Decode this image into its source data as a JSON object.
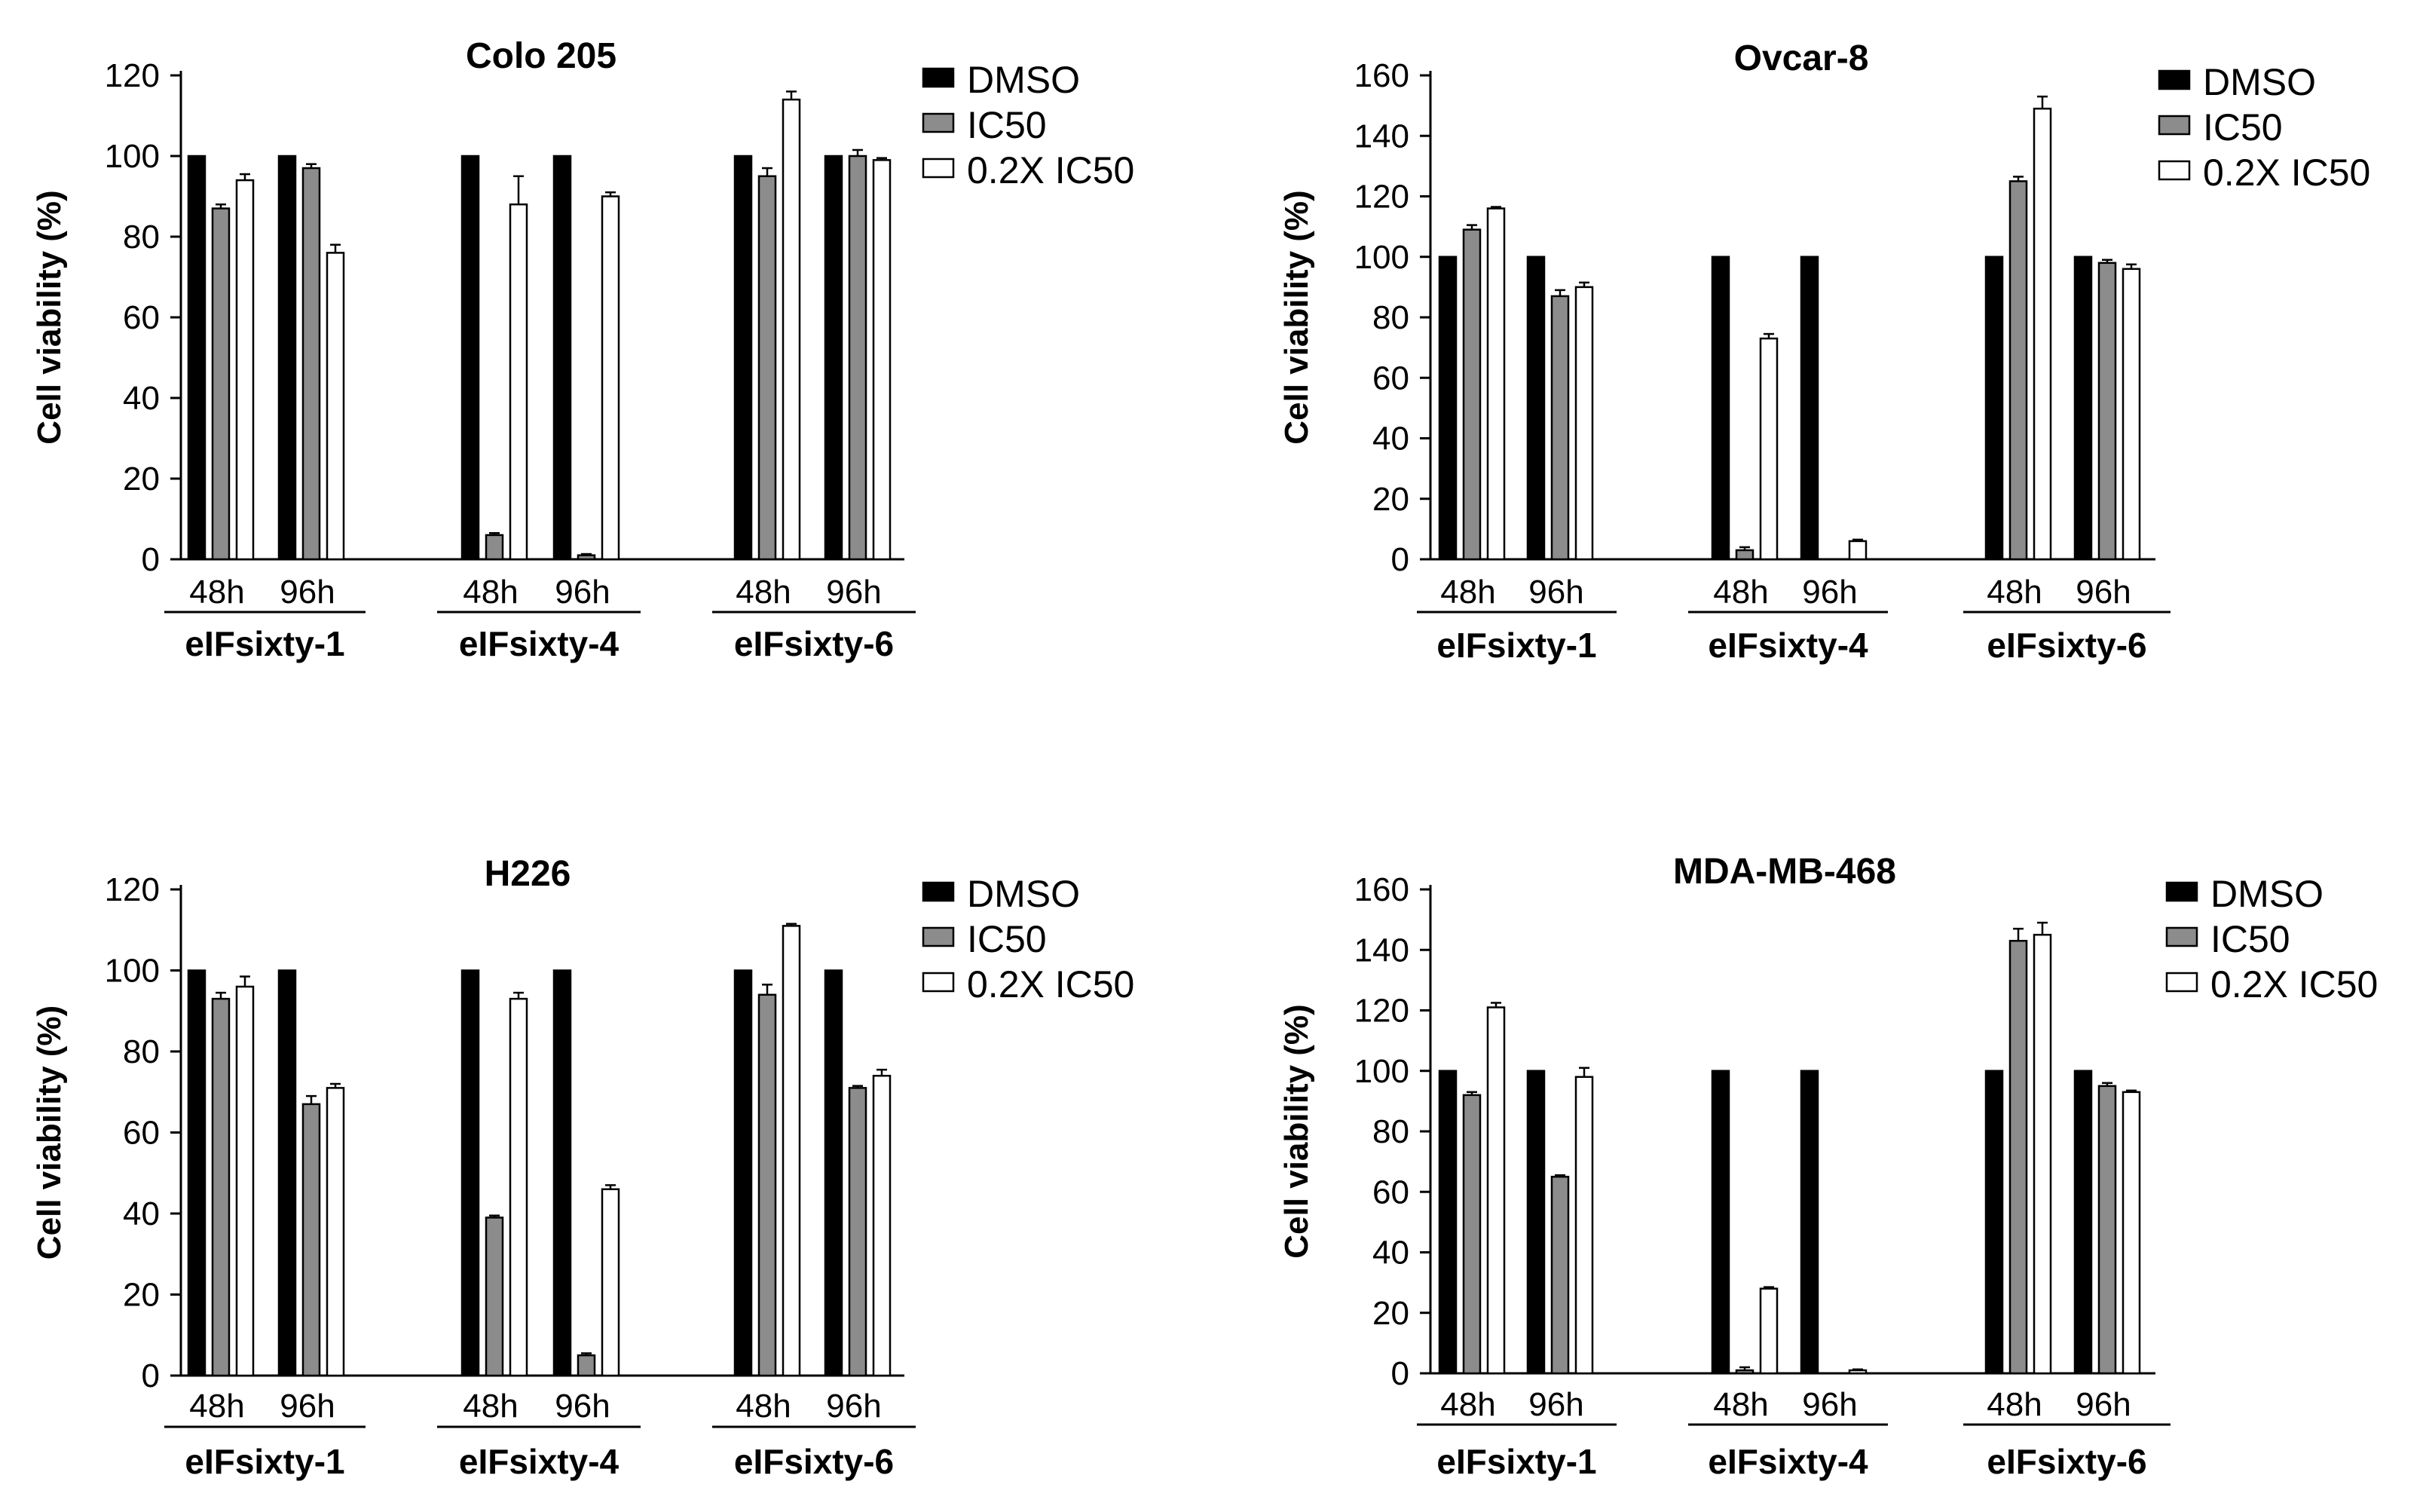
{
  "colors": {
    "DMSO": "#000000",
    "IC50": "#8c8c8c",
    "0.2X IC50": "#ffffff",
    "stroke": "#000000"
  },
  "chart_data": [
    {
      "type": "bar",
      "title": "Colo 205",
      "ylabel": "Cell viability (%)",
      "xlabel": "",
      "ylim": [
        0,
        120
      ],
      "yticks": [
        0,
        20,
        40,
        60,
        80,
        100,
        120
      ],
      "time_labels": [
        "48h",
        "96h"
      ],
      "groups": [
        "eIFsixty-1",
        "eIFsixty-4",
        "eIFsixty-6"
      ],
      "categories": [
        "eIFsixty-1 48h",
        "eIFsixty-1 96h",
        "eIFsixty-4 48h",
        "eIFsixty-4 96h",
        "eIFsixty-6 48h",
        "eIFsixty-6 96h"
      ],
      "series": [
        {
          "name": "DMSO",
          "values": [
            100,
            100,
            100,
            100,
            100,
            100
          ],
          "errors": [
            0,
            0,
            0,
            0,
            0,
            0
          ]
        },
        {
          "name": "IC50",
          "values": [
            87,
            97,
            6,
            1,
            95,
            100
          ],
          "errors": [
            1,
            1,
            0.5,
            0.3,
            2,
            1.5
          ]
        },
        {
          "name": "0.2X IC50",
          "values": [
            94,
            76,
            88,
            90,
            114,
            99
          ],
          "errors": [
            1.5,
            2,
            7,
            1,
            2,
            0.5
          ]
        }
      ],
      "legend": "top-right"
    },
    {
      "type": "bar",
      "title": "Ovcar-8",
      "ylabel": "Cell viability (%)",
      "xlabel": "",
      "ylim": [
        0,
        160
      ],
      "yticks": [
        0,
        20,
        40,
        60,
        80,
        100,
        120,
        140,
        160
      ],
      "time_labels": [
        "48h",
        "96h"
      ],
      "groups": [
        "eIFsixty-1",
        "eIFsixty-4",
        "eIFsixty-6"
      ],
      "categories": [
        "eIFsixty-1 48h",
        "eIFsixty-1 96h",
        "eIFsixty-4 48h",
        "eIFsixty-4 96h",
        "eIFsixty-6 48h",
        "eIFsixty-6 96h"
      ],
      "series": [
        {
          "name": "DMSO",
          "values": [
            100,
            100,
            100,
            100,
            100,
            100
          ],
          "errors": [
            0,
            0,
            0,
            0,
            0,
            0
          ]
        },
        {
          "name": "IC50",
          "values": [
            109,
            87,
            3,
            0,
            125,
            98
          ],
          "errors": [
            1.5,
            2,
            1,
            0,
            1.5,
            1
          ]
        },
        {
          "name": "0.2X IC50",
          "values": [
            116,
            90,
            73,
            6,
            149,
            96
          ],
          "errors": [
            0.5,
            1.5,
            1.5,
            0.5,
            4,
            1.5
          ]
        }
      ],
      "legend": "top-right"
    },
    {
      "type": "bar",
      "title": "H226",
      "ylabel": "Cell viability (%)",
      "xlabel": "",
      "ylim": [
        0,
        120
      ],
      "yticks": [
        0,
        20,
        40,
        60,
        80,
        100,
        120
      ],
      "time_labels": [
        "48h",
        "96h"
      ],
      "groups": [
        "eIFsixty-1",
        "eIFsixty-4",
        "eIFsixty-6"
      ],
      "categories": [
        "eIFsixty-1 48h",
        "eIFsixty-1 96h",
        "eIFsixty-4 48h",
        "eIFsixty-4 96h",
        "eIFsixty-6 48h",
        "eIFsixty-6 96h"
      ],
      "series": [
        {
          "name": "DMSO",
          "values": [
            100,
            100,
            100,
            100,
            100,
            100
          ],
          "errors": [
            0,
            0,
            0,
            0,
            0,
            0
          ]
        },
        {
          "name": "IC50",
          "values": [
            93,
            67,
            39,
            5,
            94,
            71
          ],
          "errors": [
            1.5,
            2,
            0.5,
            0.5,
            2.5,
            0.5
          ]
        },
        {
          "name": "0.2X IC50",
          "values": [
            96,
            71,
            93,
            46,
            111,
            74
          ],
          "errors": [
            2.5,
            1,
            1.5,
            1,
            0.5,
            1.5
          ]
        }
      ],
      "legend": "top-right"
    },
    {
      "type": "bar",
      "title": "MDA-MB-468",
      "ylabel": "Cell viability (%)",
      "xlabel": "",
      "ylim": [
        0,
        160
      ],
      "yticks": [
        0,
        20,
        40,
        60,
        80,
        100,
        120,
        140,
        160
      ],
      "time_labels": [
        "48h",
        "96h"
      ],
      "groups": [
        "eIFsixty-1",
        "eIFsixty-4",
        "eIFsixty-6"
      ],
      "categories": [
        "eIFsixty-1 48h",
        "eIFsixty-1 96h",
        "eIFsixty-4 48h",
        "eIFsixty-4 96h",
        "eIFsixty-6 48h",
        "eIFsixty-6 96h"
      ],
      "series": [
        {
          "name": "DMSO",
          "values": [
            100,
            100,
            100,
            100,
            100,
            100
          ],
          "errors": [
            0,
            0,
            0,
            0,
            0,
            0
          ]
        },
        {
          "name": "IC50",
          "values": [
            92,
            65,
            1,
            0,
            143,
            95
          ],
          "errors": [
            1,
            0.5,
            1,
            0,
            4,
            1
          ]
        },
        {
          "name": "0.2X IC50",
          "values": [
            121,
            98,
            28,
            1,
            145,
            93
          ],
          "errors": [
            1.5,
            3,
            0.5,
            0.3,
            4,
            0.5
          ]
        }
      ],
      "legend": "top-right"
    }
  ]
}
